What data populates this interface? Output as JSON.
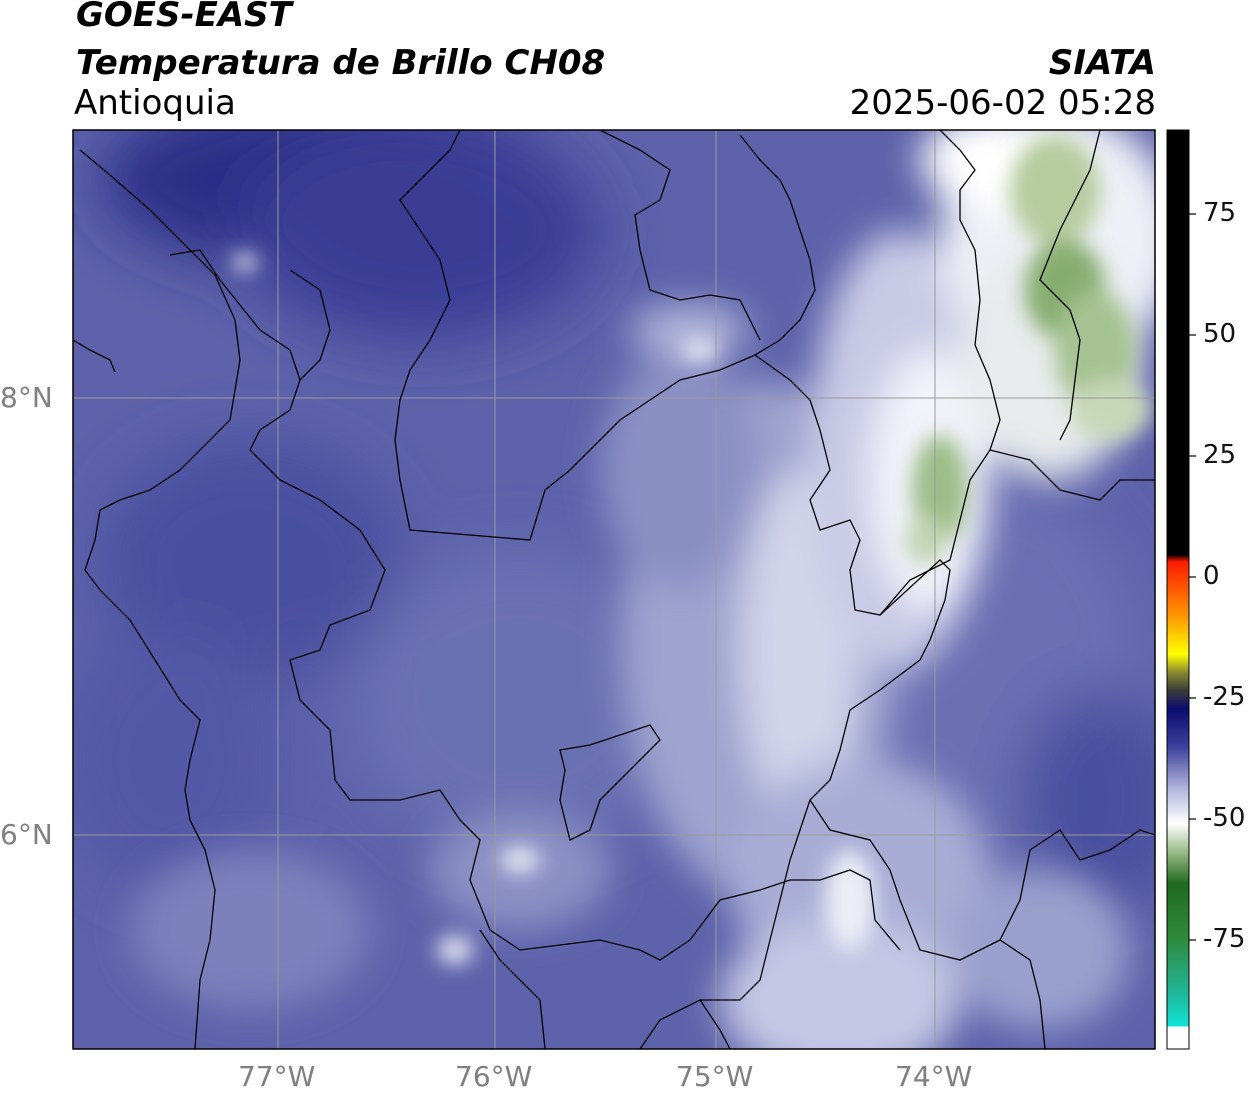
{
  "header": {
    "satellite": "GOES-EAST",
    "product": "Temperatura de Brillo CH08",
    "region": "Antioquia",
    "organization": "SIATA",
    "timestamp": "2025-06-02 05:28"
  },
  "map": {
    "lon_labels": [
      "77°W",
      "76°W",
      "75°W",
      "74°W"
    ],
    "lat_labels": [
      "8°N",
      "6°N"
    ],
    "lon_range": [
      -77.95,
      -73.05
    ],
    "lat_range": [
      5.05,
      9.25
    ]
  },
  "colorbar": {
    "ticks": [
      "75",
      "50",
      "25",
      "0",
      "-25",
      "-50",
      "-75"
    ],
    "unit_range": [
      -95,
      90
    ]
  },
  "colors": {
    "deep": "#2b2f86",
    "base": "#5258a6",
    "mid": "#6c72b3",
    "light": "#9fa4cf",
    "pale": "#d9dbee",
    "green": "#9cbc88",
    "grid": "#9a9a9a"
  }
}
